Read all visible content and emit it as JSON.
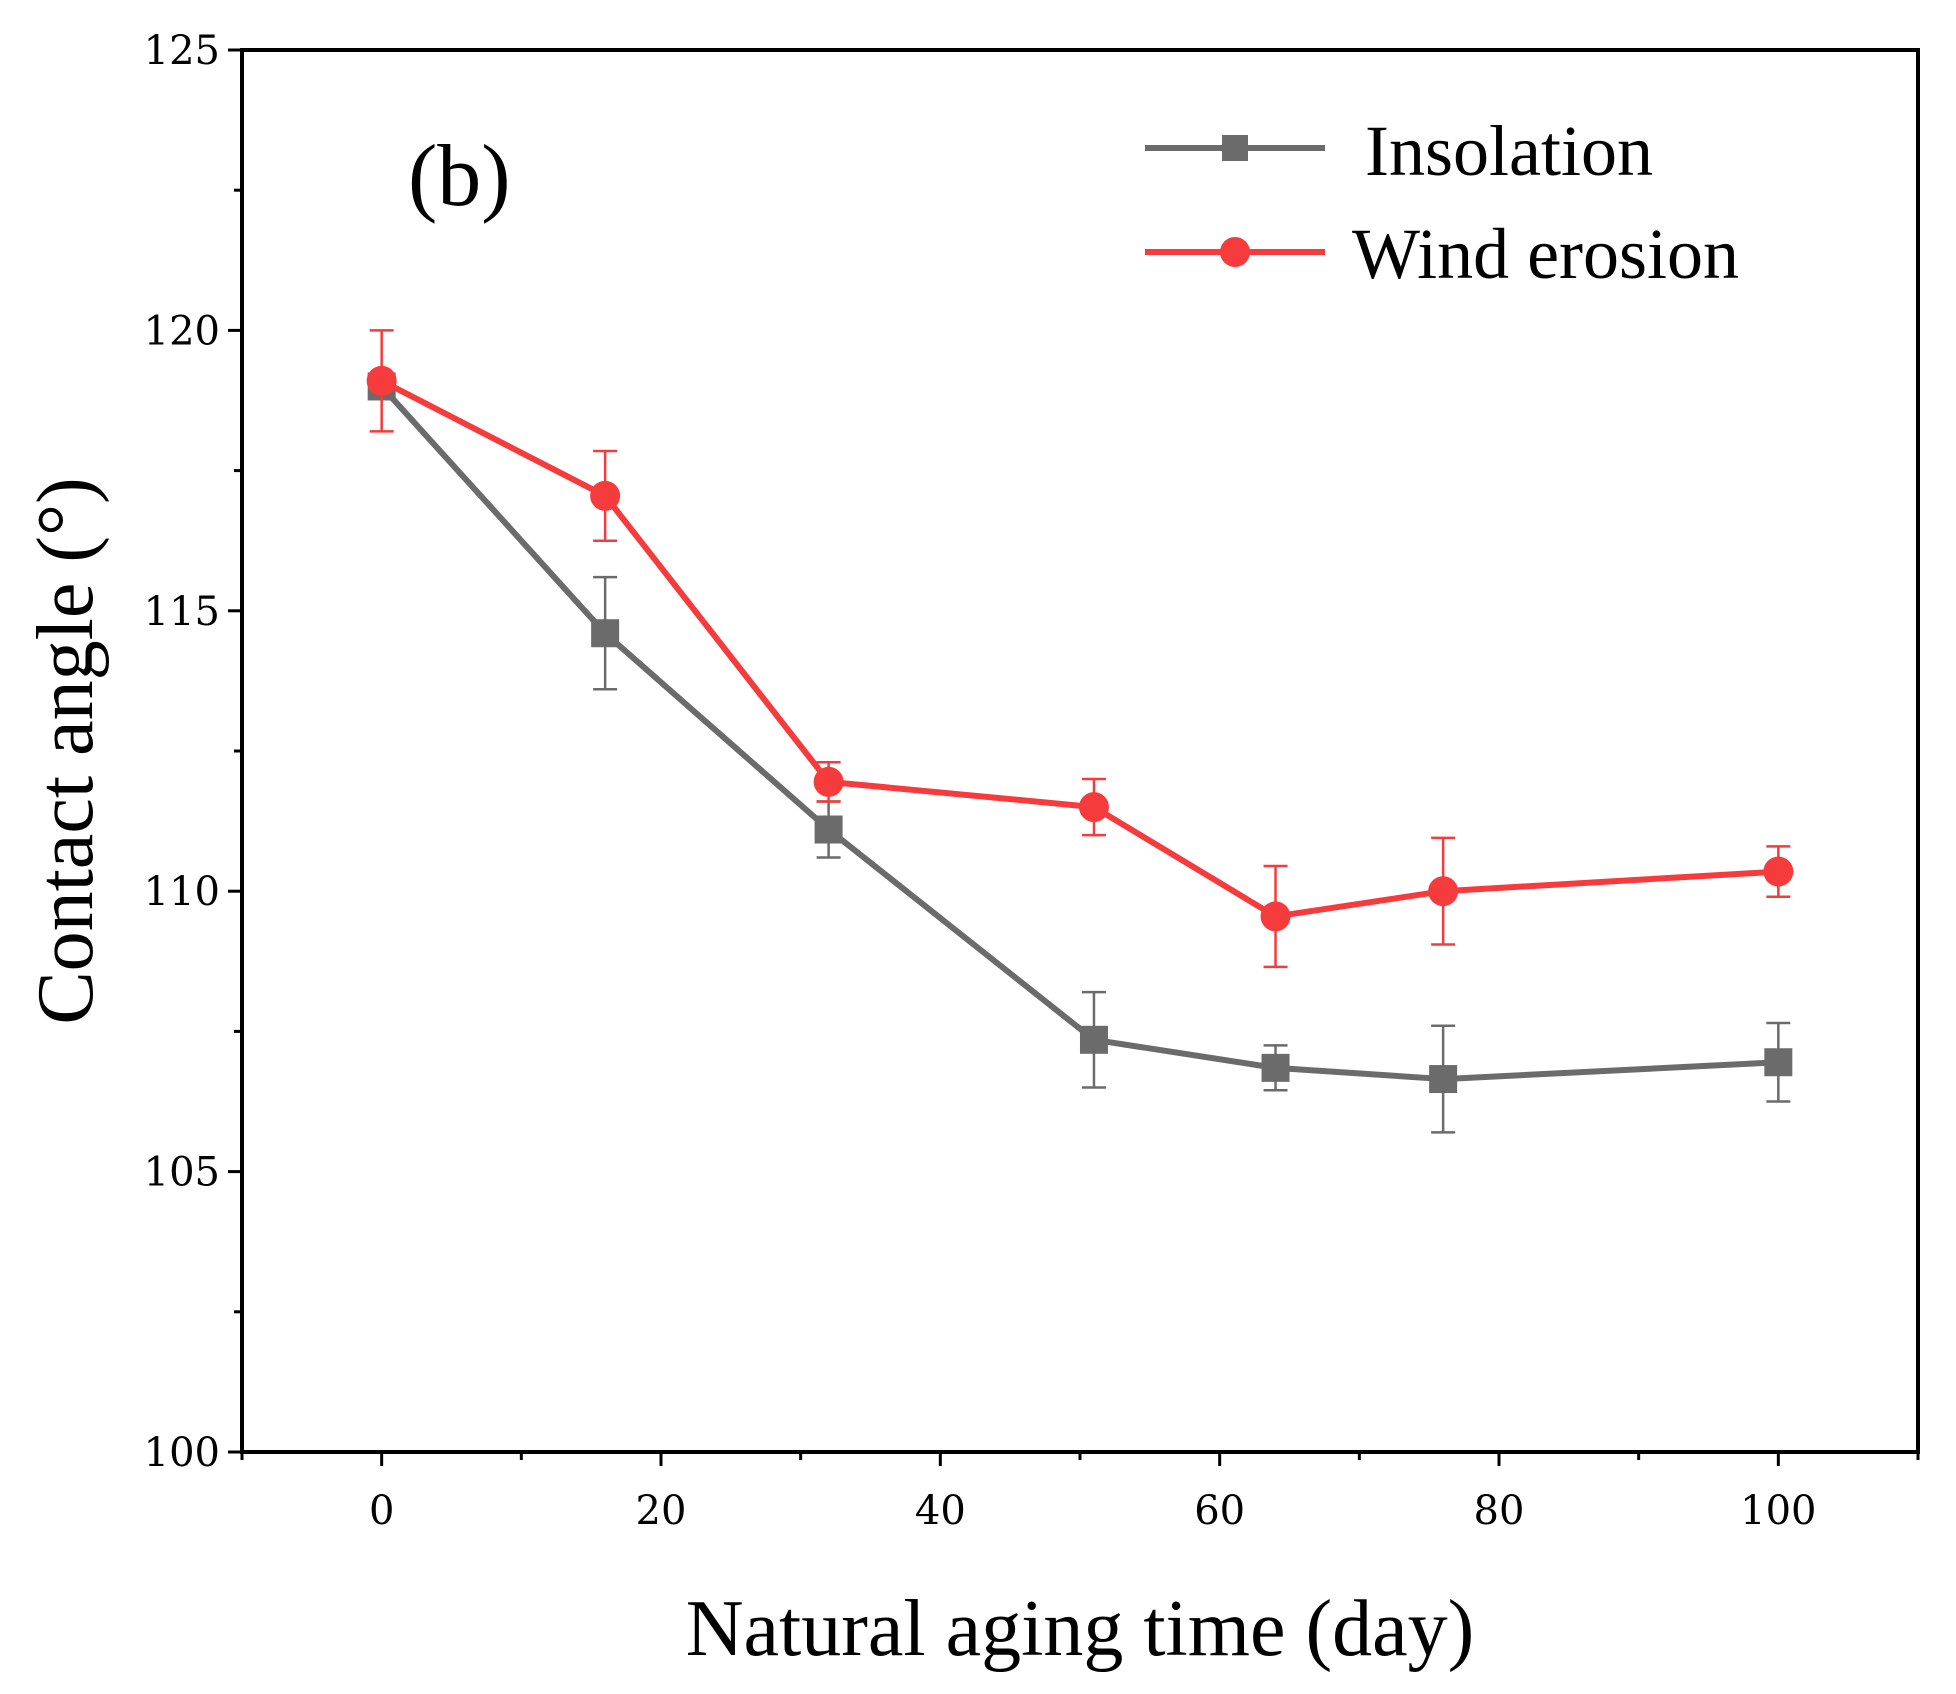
{
  "chart_data": {
    "type": "line",
    "panel_label": "(b)",
    "title": "",
    "xlabel": "Natural aging time (day)",
    "ylabel": "Contact angle (°)",
    "xlim": [
      -10,
      110
    ],
    "ylim": [
      100,
      125
    ],
    "x_ticks": [
      0,
      20,
      40,
      60,
      80,
      100
    ],
    "x_tick_labels": [
      "0",
      "20",
      "40",
      "60",
      "80",
      "100"
    ],
    "y_ticks": [
      100,
      105,
      110,
      115,
      120,
      125
    ],
    "y_tick_labels": [
      "100",
      "105",
      "110",
      "115",
      "120",
      "125"
    ],
    "legend_position": "top-right",
    "series": [
      {
        "name": "Insolation",
        "color": "#6b6b6b",
        "marker": "square",
        "x": [
          0,
          16,
          32,
          51,
          64,
          76,
          100
        ],
        "y": [
          119.0,
          114.6,
          111.1,
          107.35,
          106.85,
          106.65,
          106.95
        ],
        "err": [
          0.15,
          1.0,
          0.5,
          0.85,
          0.4,
          0.95,
          0.7
        ]
      },
      {
        "name": "Wind erosion",
        "color": "#f53b3b",
        "marker": "circle",
        "x": [
          0,
          16,
          32,
          51,
          64,
          76,
          100
        ],
        "y": [
          119.1,
          117.05,
          111.95,
          111.5,
          109.55,
          110.0,
          110.35
        ],
        "err": [
          0.9,
          0.8,
          0.35,
          0.5,
          0.9,
          0.95,
          0.45
        ]
      }
    ]
  }
}
